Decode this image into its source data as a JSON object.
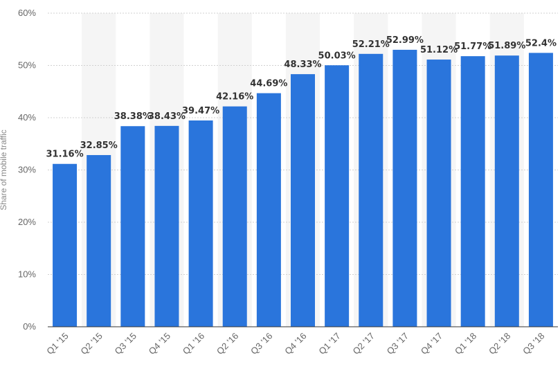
{
  "chart_data": {
    "type": "bar",
    "title": "",
    "xlabel": "",
    "ylabel": "Share of mobile traffic",
    "categories": [
      "Q1 '15",
      "Q2 '15",
      "Q3 '15",
      "Q4 '15",
      "Q1 '16",
      "Q2 '16",
      "Q3 '16",
      "Q4 '16",
      "Q1 '17",
      "Q2 '17",
      "Q3 '17",
      "Q4 '17",
      "Q1 '18",
      "Q2 '18",
      "Q3 '18"
    ],
    "values": [
      31.16,
      32.85,
      38.38,
      38.43,
      39.47,
      42.16,
      44.69,
      48.33,
      50.03,
      52.21,
      52.99,
      51.12,
      51.77,
      51.89,
      52.4
    ],
    "data_labels": [
      "31.16%",
      "32.85%",
      "38.38%",
      "38.43%",
      "39.47%",
      "42.16%",
      "44.69%",
      "48.33%",
      "50.03%",
      "52.21%",
      "52.99%",
      "51.12%",
      "51.77%",
      "51.89%",
      "52.4%"
    ],
    "ylim": [
      0,
      60
    ],
    "yticks": [
      0,
      10,
      20,
      30,
      40,
      50,
      60
    ],
    "ytick_labels": [
      "0%",
      "10%",
      "20%",
      "30%",
      "40%",
      "50%",
      "60%"
    ],
    "grid": true,
    "legend": "none",
    "bar_color": "#2a75dc",
    "band_color": "#f5f5f5"
  }
}
